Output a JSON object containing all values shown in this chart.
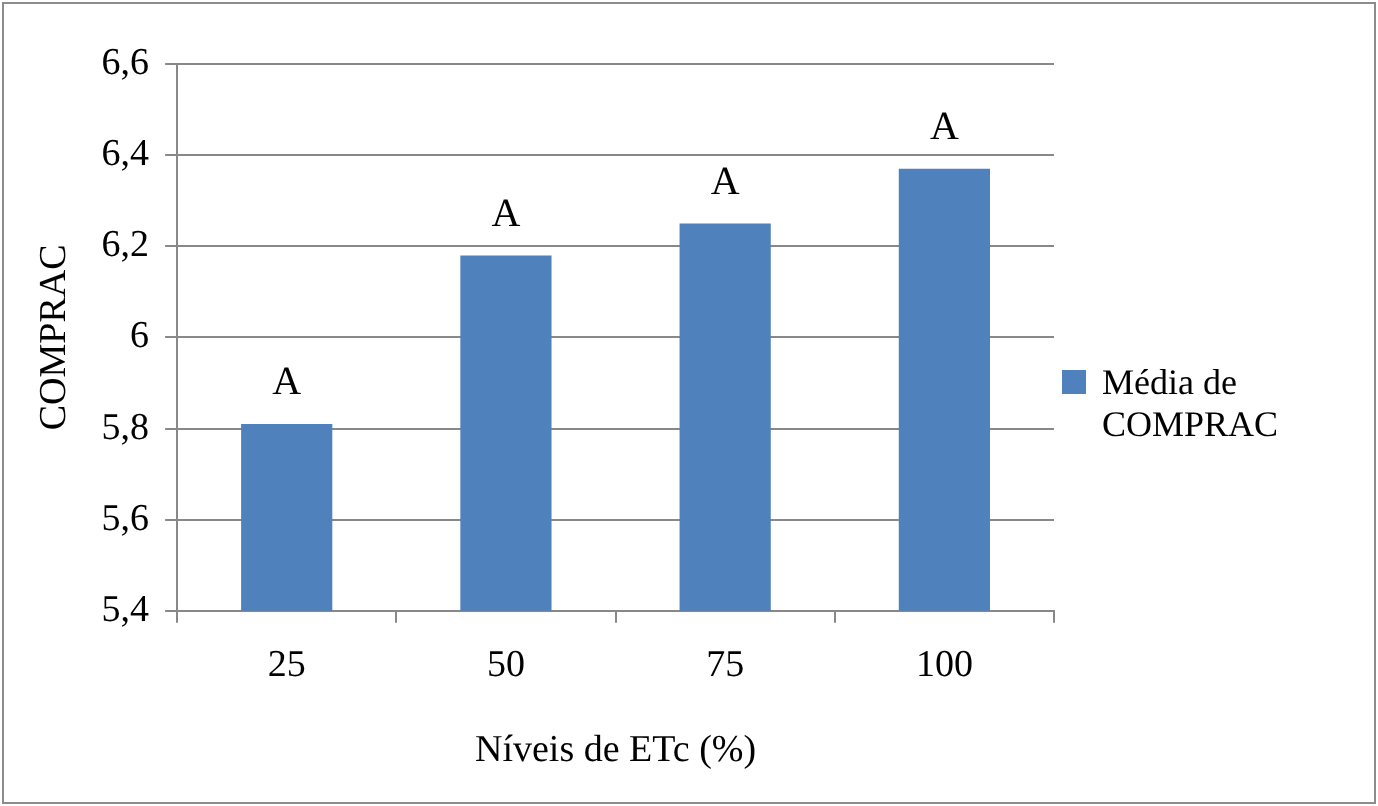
{
  "chart_data": {
    "type": "bar",
    "xlabel": "Níveis de ETc (%)",
    "ylabel": "COMPRAC",
    "categories": [
      "25",
      "50",
      "75",
      "100"
    ],
    "series": [
      {
        "name": "Média de COMPRAC",
        "color": "#4f81bd",
        "values": [
          5.81,
          6.18,
          6.25,
          6.37
        ],
        "value_labels": [
          "A",
          "A",
          "A",
          "A"
        ]
      }
    ],
    "ylim": [
      5.4,
      6.6
    ],
    "yticks": [
      {
        "value": 5.4,
        "label": "5,4"
      },
      {
        "value": 5.6,
        "label": "5,6"
      },
      {
        "value": 5.8,
        "label": "5,8"
      },
      6,
      {
        "value": 6.2,
        "label": "6,2"
      },
      {
        "value": 6.4,
        "label": "6,4"
      },
      {
        "value": 6.6,
        "label": "6,6"
      }
    ],
    "grid": "y",
    "legend": "right"
  }
}
